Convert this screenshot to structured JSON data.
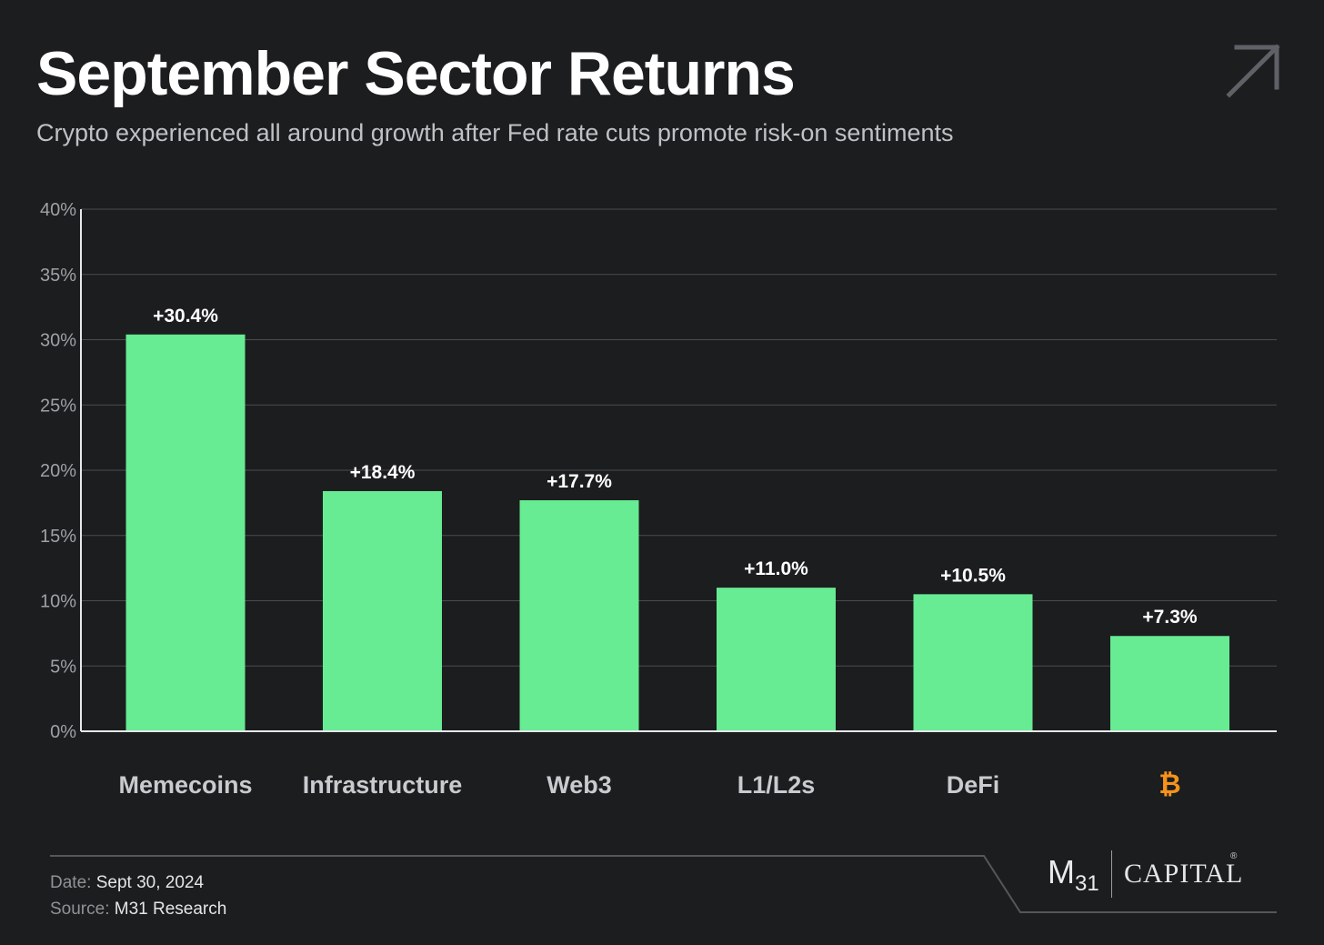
{
  "header": {
    "title": "September Sector Returns",
    "subtitle": "Crypto experienced all around growth after Fed rate cuts promote risk-on sentiments",
    "corner_icon": "diagonal-arrow-up-right-icon"
  },
  "chart_data": {
    "type": "bar",
    "categories": [
      "Memecoins",
      "Infrastructure",
      "Web3",
      "L1/L2s",
      "DeFi",
      "₿"
    ],
    "values": [
      30.4,
      18.4,
      17.7,
      11.0,
      10.5,
      7.3
    ],
    "value_labels": [
      "+30.4%",
      "+18.4%",
      "+17.7%",
      "+11.0%",
      "+10.5%",
      "+7.3%"
    ],
    "ylim": [
      0,
      40
    ],
    "yticks": [
      0,
      5,
      10,
      15,
      20,
      25,
      30,
      35,
      40
    ],
    "ytick_labels": [
      "0%",
      "5%",
      "10%",
      "15%",
      "20%",
      "25%",
      "30%",
      "35%",
      "40%"
    ],
    "grid": true,
    "colors": {
      "bar": "#67eb93",
      "bitcoin_label": "#f7931a",
      "grid": "#4a4c50",
      "axis": "#e6e7e9",
      "category_label": "#c9cbce",
      "tick_label": "#9ea1a5"
    }
  },
  "footer": {
    "date_label": "Date:",
    "date_value": "Sept 30, 2024",
    "source_label": "Source:",
    "source_value": "M31 Research",
    "logo_m": "M",
    "logo_sub": "31",
    "logo_capital": "CAPITAL",
    "logo_reg": "®"
  }
}
